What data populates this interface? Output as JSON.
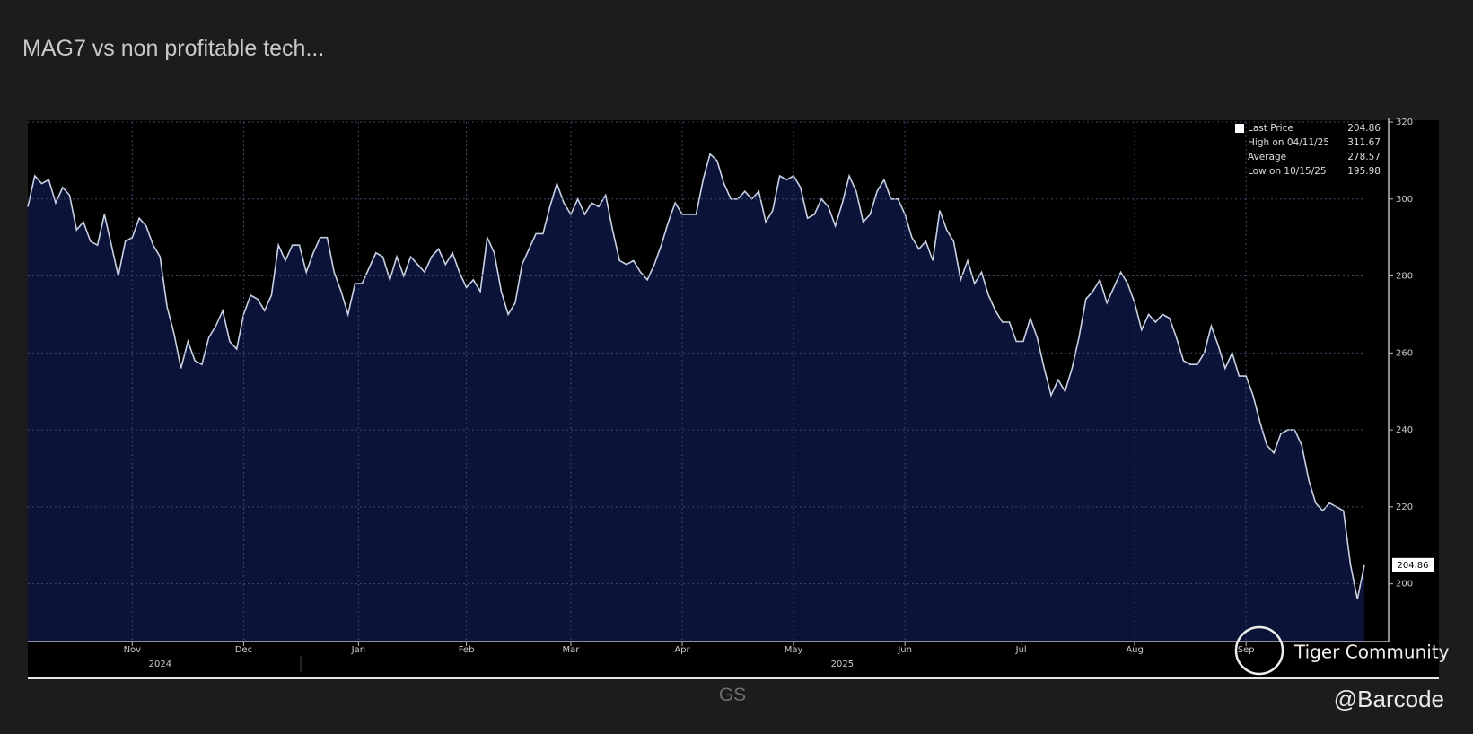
{
  "post": {
    "title": "MAG7 vs non profitable tech...",
    "caption": "GS",
    "author": "@Barcode",
    "watermark": "Tiger Community"
  },
  "chart_data": {
    "type": "line",
    "series": [
      {
        "name": "Last Price",
        "color": "#c9d1e3",
        "fill": "#0b1338",
        "values": [
          298,
          306,
          304,
          305,
          299,
          303,
          301,
          292,
          294,
          289,
          288,
          296,
          288,
          280,
          289,
          290,
          295,
          293,
          288,
          285,
          272,
          265,
          256,
          263,
          258,
          257,
          264,
          267,
          271,
          263,
          261,
          270,
          275,
          274,
          271,
          275,
          288,
          284,
          288,
          288,
          281,
          286,
          290,
          290,
          281,
          276,
          270,
          278,
          278,
          282,
          286,
          285,
          279,
          285,
          280,
          285,
          283,
          281,
          285,
          287,
          283,
          286,
          281,
          277,
          279,
          276,
          290,
          286,
          276,
          270,
          273,
          283,
          287,
          291,
          291,
          298,
          304,
          299,
          296,
          300,
          296,
          299,
          298,
          301,
          292,
          284,
          283,
          284,
          281,
          279,
          283,
          288,
          294,
          299,
          296,
          296,
          296,
          305,
          311.67,
          310,
          304,
          300,
          300,
          302,
          300,
          302,
          294,
          297,
          306,
          305,
          306,
          303,
          295,
          296,
          300,
          298,
          293,
          299,
          306,
          302,
          294,
          296,
          302,
          305,
          300,
          300,
          296,
          290,
          287,
          289,
          284,
          297,
          292,
          289,
          279,
          284,
          278,
          281,
          275,
          271,
          268,
          268,
          263,
          263,
          269,
          264,
          256,
          249,
          253,
          250,
          256,
          264,
          274,
          276,
          279,
          273,
          277,
          281,
          278,
          273,
          266,
          270,
          268,
          270,
          269,
          264,
          258,
          257,
          257,
          260,
          267,
          262,
          256,
          260,
          254,
          254,
          249,
          242,
          236,
          234,
          239,
          240,
          240,
          236,
          227,
          221,
          219,
          221,
          220,
          219,
          205,
          195.98,
          204.86
        ]
      }
    ],
    "xlim": [
      0,
      192
    ],
    "xticks": [
      {
        "value": 15,
        "label": "Nov"
      },
      {
        "value": 31,
        "label": "Dec"
      },
      {
        "value": 47.5,
        "label": "Jan"
      },
      {
        "value": 63,
        "label": "Feb"
      },
      {
        "value": 78,
        "label": "Mar"
      },
      {
        "value": 94,
        "label": "Apr"
      },
      {
        "value": 110,
        "label": "May"
      },
      {
        "value": 126,
        "label": "Jun"
      },
      {
        "value": 142.7,
        "label": "Jul"
      },
      {
        "value": 159,
        "label": "Aug"
      },
      {
        "value": 175,
        "label": "Sep"
      }
    ],
    "years": [
      {
        "value": 19,
        "label": "2024"
      },
      {
        "value": 117,
        "label": "2025"
      }
    ],
    "ylim": [
      185,
      320
    ],
    "yticks": [
      200,
      220,
      240,
      260,
      280,
      300,
      320
    ],
    "grid": true,
    "stats": [
      {
        "label": "Last Price",
        "value": 204.86
      },
      {
        "label": "High on 04/11/25",
        "value": 311.67
      },
      {
        "label": "Average",
        "value": 278.57
      },
      {
        "label": "Low on 10/15/25",
        "value": 195.98
      }
    ],
    "legend": "upper right"
  }
}
